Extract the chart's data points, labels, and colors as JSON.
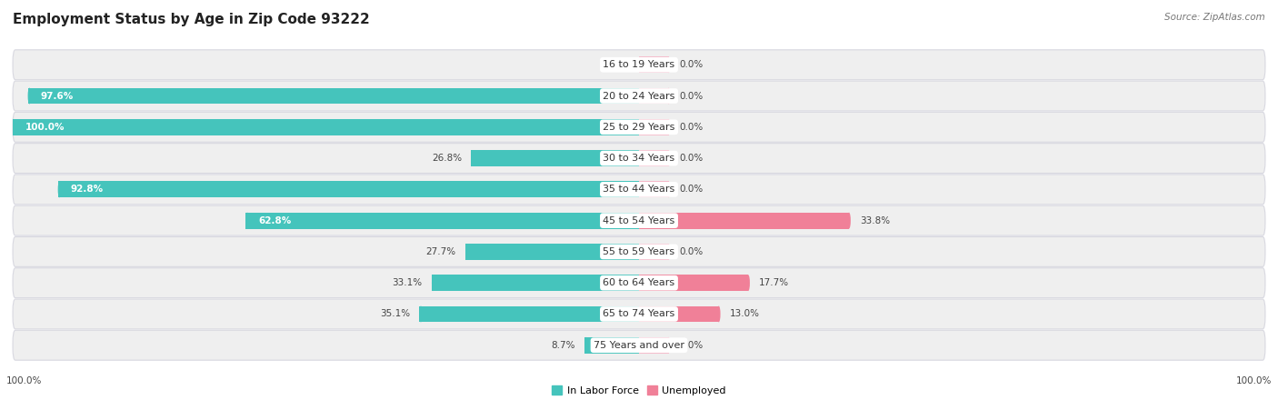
{
  "title": "Employment Status by Age in Zip Code 93222",
  "source": "Source: ZipAtlas.com",
  "categories": [
    "16 to 19 Years",
    "20 to 24 Years",
    "25 to 29 Years",
    "30 to 34 Years",
    "35 to 44 Years",
    "45 to 54 Years",
    "55 to 59 Years",
    "60 to 64 Years",
    "65 to 74 Years",
    "75 Years and over"
  ],
  "in_labor_force": [
    0.0,
    97.6,
    100.0,
    26.8,
    92.8,
    62.8,
    27.7,
    33.1,
    35.1,
    8.7
  ],
  "unemployed": [
    0.0,
    0.0,
    0.0,
    0.0,
    0.0,
    33.8,
    0.0,
    17.7,
    13.0,
    0.0
  ],
  "labor_color": "#45C4BC",
  "unemployed_color": "#F08098",
  "unemp_stub_color": "#F5B8C8",
  "bg_row_color": "#EFEFEF",
  "bar_height": 0.52,
  "stub_size": 5.0,
  "xlim": 100.0,
  "title_fontsize": 11,
  "label_fontsize": 7.5,
  "source_fontsize": 7.5,
  "category_fontsize": 8,
  "axis_label_fontsize": 7.5
}
